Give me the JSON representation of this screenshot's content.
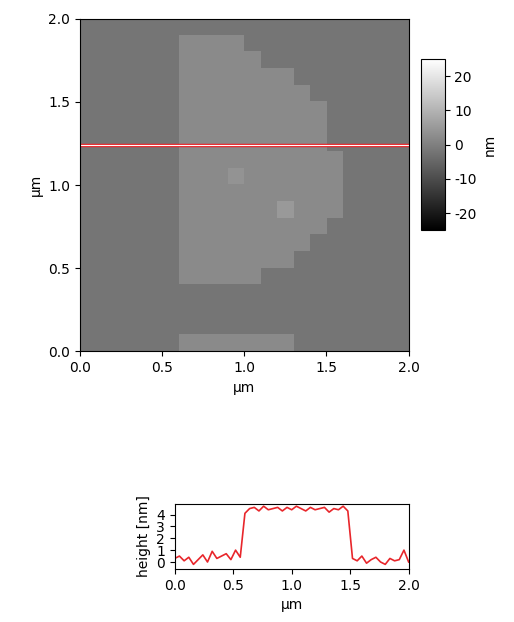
{
  "chart_data": [
    {
      "type": "heatmap",
      "x_label": "µm",
      "y_label": "µm",
      "xlim": [
        0,
        2
      ],
      "ylim": [
        0,
        2
      ],
      "xticks": [
        {
          "value": 0,
          "label": "0.0"
        },
        {
          "value": 0.5,
          "label": "0.5"
        },
        {
          "value": 1,
          "label": "1.0"
        },
        {
          "value": 1.5,
          "label": "1.5"
        },
        {
          "value": 2,
          "label": "2.0"
        }
      ],
      "yticks": [
        {
          "value": 0,
          "label": "0.0"
        },
        {
          "value": 0.5,
          "label": "0.5"
        },
        {
          "value": 1,
          "label": "1.0"
        },
        {
          "value": 1.5,
          "label": "1.5"
        },
        {
          "value": 2,
          "label": "2.0"
        }
      ],
      "cells": [
        [
          -2,
          -2,
          -2,
          -2,
          -2,
          -2,
          -2,
          -2,
          -2,
          -2,
          -2,
          -2,
          -2,
          -2,
          -2,
          -2,
          -2,
          -2,
          -2,
          -2
        ],
        [
          -2,
          -2,
          -2,
          -2,
          -2,
          -2,
          2,
          2,
          2,
          2,
          -2,
          -2,
          -2,
          -2,
          -2,
          -2,
          -2,
          -2,
          -2,
          -2
        ],
        [
          -2,
          -2,
          -2,
          -2,
          -2,
          -2,
          2,
          2,
          2,
          2,
          2,
          -2,
          -2,
          -2,
          -2,
          -2,
          -2,
          -2,
          -2,
          -2
        ],
        [
          -2,
          -2,
          -2,
          -2,
          -2,
          -2,
          2,
          2,
          2,
          2,
          2,
          2,
          2,
          -2,
          -2,
          -2,
          -2,
          -2,
          -2,
          -2
        ],
        [
          -2,
          -2,
          -2,
          -2,
          -2,
          -2,
          2,
          2,
          2,
          2,
          2,
          2,
          2,
          2,
          -2,
          -2,
          -2,
          -2,
          -2,
          -2
        ],
        [
          -2,
          -2,
          -2,
          -2,
          -2,
          -2,
          2,
          2,
          2,
          2,
          2,
          2,
          2,
          2,
          2,
          -2,
          -2,
          -2,
          -2,
          -2
        ],
        [
          -2,
          -2,
          -2,
          -2,
          -2,
          -2,
          2,
          2,
          2,
          2,
          2,
          2,
          2,
          2,
          2,
          -2,
          -2,
          -2,
          -2,
          -2
        ],
        [
          -2,
          -2,
          -2,
          -2,
          -2,
          -2,
          2,
          2,
          2,
          2,
          2,
          2,
          2,
          2,
          2,
          -2,
          -2,
          -2,
          -2,
          -2
        ],
        [
          -2,
          -2,
          -2,
          -2,
          -2,
          -2,
          2,
          2,
          2,
          2,
          2,
          2,
          2,
          2,
          2,
          2,
          -2,
          -2,
          -2,
          -2
        ],
        [
          -2,
          -2,
          -2,
          -2,
          -2,
          -2,
          2,
          2,
          2,
          4,
          2,
          2,
          2,
          2,
          2,
          2,
          -2,
          -2,
          -2,
          -2
        ],
        [
          -2,
          -2,
          -2,
          -2,
          -2,
          -2,
          2,
          2,
          2,
          2,
          2,
          2,
          2,
          2,
          2,
          2,
          -2,
          -2,
          -2,
          -2
        ],
        [
          -2,
          -2,
          -2,
          -2,
          -2,
          -2,
          2,
          2,
          2,
          2,
          2,
          2,
          5,
          2,
          2,
          2,
          -2,
          -2,
          -2,
          -2
        ],
        [
          -2,
          -2,
          -2,
          -2,
          -2,
          -2,
          2,
          2,
          2,
          2,
          2,
          2,
          2,
          2,
          2,
          -2,
          -2,
          -2,
          -2,
          -2
        ],
        [
          -2,
          -2,
          -2,
          -2,
          -2,
          -2,
          2,
          2,
          2,
          2,
          2,
          2,
          2,
          2,
          -2,
          -2,
          -2,
          -2,
          -2,
          -2
        ],
        [
          -2,
          -2,
          -2,
          -2,
          -2,
          -2,
          2,
          2,
          2,
          2,
          2,
          2,
          2,
          -2,
          -2,
          -2,
          -2,
          -2,
          -2,
          -2
        ],
        [
          -2,
          -2,
          -2,
          -2,
          -2,
          -2,
          2,
          2,
          2,
          2,
          2,
          -2,
          -2,
          -2,
          -2,
          -2,
          -2,
          -2,
          -2,
          -2
        ],
        [
          -2,
          -2,
          -2,
          -2,
          -2,
          -2,
          -2,
          -2,
          -2,
          -2,
          -2,
          -2,
          -2,
          -2,
          -2,
          -2,
          -2,
          -2,
          -2,
          -2
        ],
        [
          -2,
          -2,
          -2,
          -2,
          -2,
          -2,
          -2,
          -2,
          -2,
          -2,
          -2,
          -2,
          -2,
          -2,
          -2,
          -2,
          -2,
          -2,
          -2,
          -2
        ],
        [
          -2,
          -2,
          -2,
          -2,
          -2,
          -2,
          -2,
          -2,
          -2,
          -2,
          -2,
          -2,
          -2,
          -2,
          -2,
          -2,
          -2,
          -2,
          -2,
          -2
        ],
        [
          -2,
          -2,
          -2,
          -2,
          -2,
          -2,
          2,
          2,
          2,
          2,
          2,
          2,
          2,
          -2,
          -2,
          -2,
          -2,
          -2,
          -2,
          -2
        ]
      ],
      "colorbar_label": "nm",
      "colorbar_range": [
        -25,
        25
      ],
      "colorbar_ticks": [
        -20,
        -10,
        0,
        10,
        20
      ],
      "line_y": 1.24,
      "line_color": "#e8262b"
    },
    {
      "type": "line",
      "x_label": "µm",
      "y_label": "height [nm]",
      "xlim": [
        0,
        2
      ],
      "ylim": [
        -0.6,
        4.9
      ],
      "xticks": [
        {
          "value": 0,
          "label": "0.0"
        },
        {
          "value": 0.5,
          "label": "0.5"
        },
        {
          "value": 1,
          "label": "1.0"
        },
        {
          "value": 1.5,
          "label": "1.5"
        },
        {
          "value": 2,
          "label": "2.0"
        }
      ],
      "yticks": [
        0,
        1,
        2,
        3,
        4
      ],
      "color": "#e8262b",
      "x": [
        0,
        0.04,
        0.08,
        0.12,
        0.16,
        0.2,
        0.24,
        0.28,
        0.32,
        0.36,
        0.4,
        0.44,
        0.48,
        0.52,
        0.56,
        0.6,
        0.64,
        0.68,
        0.72,
        0.76,
        0.8,
        0.84,
        0.88,
        0.92,
        0.96,
        1.0,
        1.04,
        1.08,
        1.12,
        1.16,
        1.2,
        1.24,
        1.28,
        1.32,
        1.36,
        1.4,
        1.44,
        1.48,
        1.52,
        1.56,
        1.6,
        1.64,
        1.68,
        1.72,
        1.76,
        1.8,
        1.84,
        1.88,
        1.92,
        1.96,
        2.0
      ],
      "values": [
        0.3,
        0.5,
        0.1,
        0.4,
        -0.2,
        0.2,
        0.6,
        0.0,
        0.9,
        0.3,
        0.5,
        0.7,
        0.2,
        1.0,
        0.4,
        4.1,
        4.5,
        4.6,
        4.3,
        4.7,
        4.4,
        4.5,
        4.6,
        4.3,
        4.6,
        4.4,
        4.7,
        4.5,
        4.3,
        4.6,
        4.4,
        4.5,
        4.6,
        4.2,
        4.5,
        4.4,
        4.7,
        4.3,
        0.3,
        0.1,
        0.5,
        -0.1,
        0.2,
        0.4,
        0.0,
        -0.2,
        0.3,
        0.1,
        0.2,
        1.0,
        0.0
      ]
    }
  ]
}
